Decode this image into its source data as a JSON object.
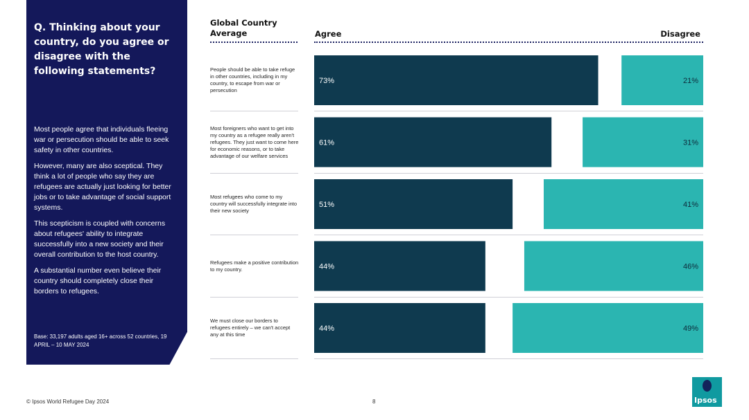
{
  "panel": {
    "question": "Q. Thinking about your country, do you agree or disagree with the following statements?",
    "body": [
      "Most people agree that individuals fleeing war or persecution should be able to seek safety in other countries.",
      "However, many are also sceptical. They think a lot of people who say they are refugees are actually just looking for better jobs or to take advantage of social support systems.",
      "This scepticism is coupled with concerns about refugees' ability to integrate successfully into a new society and their overall contribution to the host country.",
      "A substantial  number even believe their country should completely close their borders to refugees."
    ],
    "base": "Base: 33,197 adults aged 16+ across 52 countries, 19 APRIL – 10 MAY 2024"
  },
  "header": {
    "title": "Global Country Average",
    "agree": "Agree",
    "disagree": "Disagree"
  },
  "chart_data": {
    "type": "bar",
    "categories": [
      "People should be able to take refuge in other countries, including in my country, to escape from war or persecution",
      "Most foreigners who want to get into my country as a refugee really aren't refugees. They just want to come here for economic reasons, or to take advantage of our welfare services",
      "Most refugees who come to my country will successfully integrate into their new society",
      "Refugees make a positive contribution to my country.",
      "We must close our borders to refugees entirely – we can't accept any at this time"
    ],
    "series": [
      {
        "name": "Agree",
        "values": [
          73,
          61,
          51,
          44,
          44
        ],
        "labels": [
          "73%",
          "61%",
          "51%",
          "44%",
          "44%"
        ],
        "color": "#0f3a4f"
      },
      {
        "name": "Disagree",
        "values": [
          21,
          31,
          41,
          46,
          49
        ],
        "labels": [
          "21%",
          "31%",
          "41%",
          "46%",
          "49%"
        ],
        "color": "#2bb5b1"
      }
    ],
    "ylim": [
      0,
      100
    ]
  },
  "footer": {
    "copyright": "© Ipsos World Refugee Day 2024",
    "page": "8"
  },
  "logo": {
    "text": "Ipsos"
  }
}
